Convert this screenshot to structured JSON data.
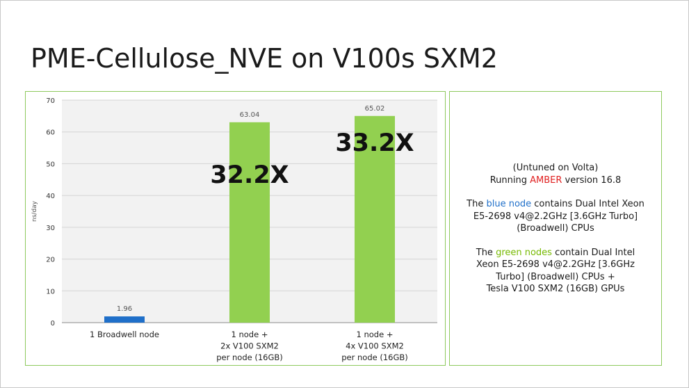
{
  "slide": {
    "title": "PME-Cellulose_NVE on V100s SXM2"
  },
  "info": {
    "p1_line1": "(Untuned on Volta)",
    "p1_line2_a": "Running ",
    "p1_line2_b": "AMBER",
    "p1_line2_c": " version 16.8",
    "p2_a": "The ",
    "p2_b": "blue node",
    "p2_c": " contains Dual Intel Xeon",
    "p2_line2": "E5-2698 v4@2.2GHz [3.6GHz Turbo]",
    "p2_line3": "(Broadwell) CPUs",
    "p3_a": "The ",
    "p3_b": "green nodes",
    "p3_c": " contain Dual Intel",
    "p3_line2": "Xeon E5-2698 v4@2.2GHz [3.6GHz",
    "p3_line3": "Turbo] (Broadwell) CPUs +",
    "p3_line4": "Tesla V100 SXM2 (16GB) GPUs"
  },
  "colors": {
    "blue_bar": "#1f6fc9",
    "green_bar": "#92d050",
    "panel_border": "#8dc95c",
    "highlight_red": "#e02020"
  },
  "chart_data": {
    "type": "bar",
    "ylabel": "ns/day",
    "xlabel": "",
    "ylim": [
      0,
      70
    ],
    "yticks": [
      0,
      10,
      20,
      30,
      40,
      50,
      60,
      70
    ],
    "grid": true,
    "categories": [
      [
        "1 Broadwell node"
      ],
      [
        "1 node +",
        "2x V100 SXM2",
        "per node (16GB)"
      ],
      [
        "1 node +",
        "4x V100 SXM2",
        "per node (16GB)"
      ]
    ],
    "values": [
      1.96,
      63.04,
      65.02
    ],
    "value_labels": [
      "1.96",
      "63.04",
      "65.02"
    ],
    "bar_colors": [
      "#1f6fc9",
      "#92d050",
      "#92d050"
    ],
    "annotations": [
      {
        "text": "32.2X",
        "category_index": 1,
        "y": 44
      },
      {
        "text": "33.2X",
        "category_index": 2,
        "y": 54
      }
    ]
  }
}
